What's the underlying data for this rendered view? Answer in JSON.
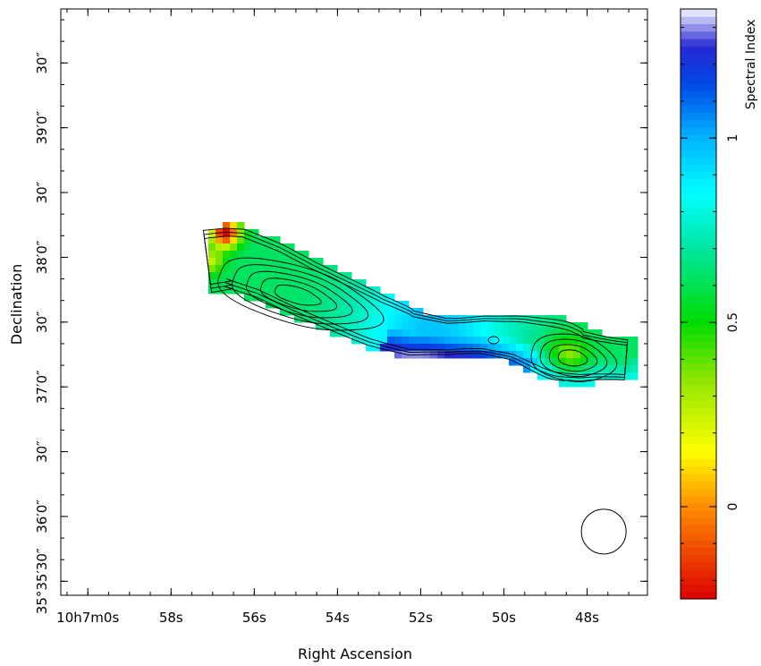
{
  "chart_data": {
    "type": "heatmap",
    "xlabel": "Right Ascension",
    "ylabel": "Declination",
    "x_ticks": [
      {
        "value": 0,
        "label": "10h7m0s"
      },
      {
        "value": 2,
        "label": "58s"
      },
      {
        "value": 4,
        "label": "56s"
      },
      {
        "value": 6,
        "label": "54s"
      },
      {
        "value": 8,
        "label": "52s"
      },
      {
        "value": 10,
        "label": "50s"
      },
      {
        "value": 12,
        "label": "48s"
      }
    ],
    "y_ticks": [
      {
        "value": 0,
        "label": "35°35′30″"
      },
      {
        "value": 30,
        "label": "36′0″"
      },
      {
        "value": 60,
        "label": "30″"
      },
      {
        "value": 90,
        "label": "37′0″"
      },
      {
        "value": 120,
        "label": "30″"
      },
      {
        "value": 150,
        "label": "38′0″"
      },
      {
        "value": 180,
        "label": "30″"
      },
      {
        "value": 210,
        "label": "39′0″"
      },
      {
        "value": 240,
        "label": "30″"
      }
    ],
    "x_range_seconds_offset": [
      -0.65,
      13.45
    ],
    "y_range_arcsec_offset": [
      -6.5,
      265
    ],
    "colorbar": {
      "label": "Spectral Index",
      "range": [
        -0.25,
        1.35
      ],
      "ticks": [
        0,
        0.5,
        1
      ],
      "tick_labels": [
        "0",
        "0.5",
        "1"
      ],
      "colormap": [
        "#ff0000",
        "#ffa500",
        "#ffff00",
        "#00dd00",
        "#00ffff",
        "#0066ff",
        "#0000cc",
        "#ffffff"
      ]
    },
    "source": {
      "description": "extended radio source with two lobes",
      "peaks": [
        {
          "ra_offset_s": 5.6,
          "dec_offset_arcsec": 143,
          "spectral_index": 0.6
        },
        {
          "ra_offset_s": 11.7,
          "dec_offset_arcsec": 129,
          "spectral_index": 0.5
        }
      ],
      "western_edge_spectral_index": 0.0,
      "bridge_spectral_index": 0.85,
      "northern_edge_spectral_index": 1.1
    },
    "contours": {
      "levels": 8,
      "color": "#000000"
    },
    "beam": {
      "ra_offset_s": 12.4,
      "dec_offset_arcsec": 23
    }
  }
}
